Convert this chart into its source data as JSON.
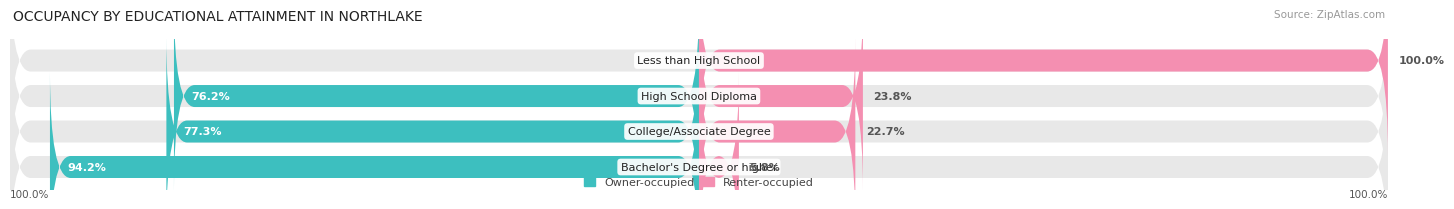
{
  "title": "OCCUPANCY BY EDUCATIONAL ATTAINMENT IN NORTHLAKE",
  "source": "Source: ZipAtlas.com",
  "categories": [
    "Less than High School",
    "High School Diploma",
    "College/Associate Degree",
    "Bachelor's Degree or higher"
  ],
  "owner_pct": [
    0.0,
    76.2,
    77.3,
    94.2
  ],
  "renter_pct": [
    100.0,
    23.8,
    22.7,
    5.8
  ],
  "owner_color": "#3dbfbf",
  "renter_color": "#f48fb1",
  "bar_bg_color": "#e8e8e8",
  "bar_height": 0.62,
  "title_fontsize": 10,
  "label_fontsize": 8,
  "source_fontsize": 7.5,
  "legend_fontsize": 8,
  "axis_label_fontsize": 7.5,
  "background_color": "#ffffff",
  "pct_label_color_owner": "#ffffff",
  "pct_label_color_renter": "#555555",
  "category_label_fontsize": 8
}
